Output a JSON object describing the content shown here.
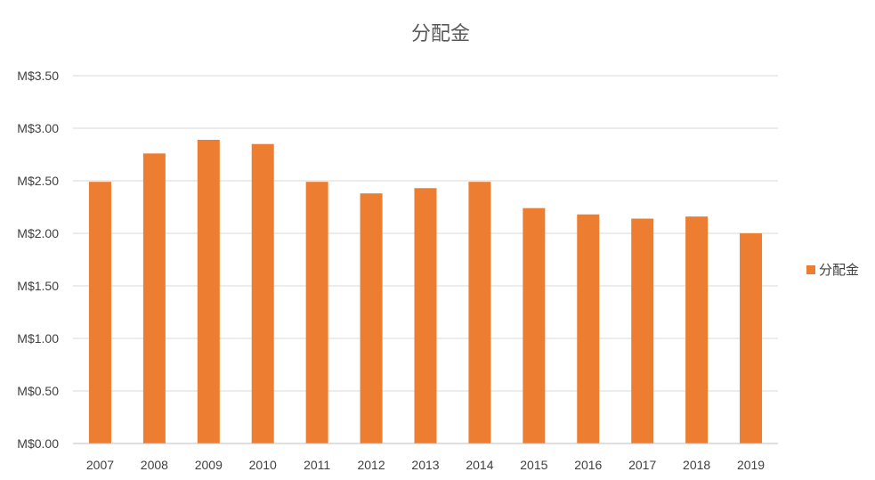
{
  "chart_data": {
    "type": "bar",
    "title": "分配金",
    "xlabel": "",
    "ylabel": "",
    "categories": [
      "2007",
      "2008",
      "2009",
      "2010",
      "2011",
      "2012",
      "2013",
      "2014",
      "2015",
      "2016",
      "2017",
      "2018",
      "2019"
    ],
    "series": [
      {
        "name": "分配金",
        "values": [
          2.49,
          2.76,
          2.89,
          2.85,
          2.49,
          2.38,
          2.43,
          2.49,
          2.24,
          2.18,
          2.14,
          2.16,
          2.0
        ]
      }
    ],
    "ylim": [
      0,
      3.5
    ],
    "y_ticks": [
      0,
      0.5,
      1.0,
      1.5,
      2.0,
      2.5,
      3.0,
      3.5
    ],
    "y_tick_labels": [
      "M$0.00",
      "M$0.50",
      "M$1.00",
      "M$1.50",
      "M$2.00",
      "M$2.50",
      "M$3.00",
      "M$3.50"
    ],
    "grid": true,
    "legend": "right",
    "colors": {
      "bar": "#ED7D31",
      "grid": "#D9D9D9",
      "text": "#404040",
      "title": "#595959"
    }
  }
}
